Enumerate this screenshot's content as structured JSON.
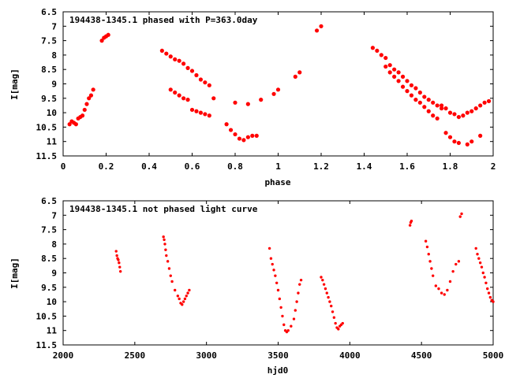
{
  "colors": {
    "points": "#ff0000",
    "axes": "#000000",
    "background": "#ffffff"
  },
  "chart_data": [
    {
      "type": "scatter",
      "title": "194438-1345.1 phased with P=363.0day",
      "xlabel": "phase",
      "ylabel": "I[mag]",
      "xlim": [
        0,
        2
      ],
      "ylim": [
        11.5,
        6.5
      ],
      "y_inverted": true,
      "grid": false,
      "xticks": [
        "0",
        "0.2",
        "0.4",
        "0.6",
        "0.8",
        "1",
        "1.2",
        "1.4",
        "1.6",
        "1.8",
        "2"
      ],
      "yticks": [
        "6.5",
        "7",
        "7.5",
        "8",
        "8.5",
        "9",
        "9.5",
        "10",
        "10.5",
        "11",
        "11.5"
      ],
      "marker": "filled-circle",
      "x": [
        0.03,
        0.04,
        0.05,
        0.06,
        0.07,
        0.08,
        0.09,
        0.1,
        0.11,
        0.12,
        0.13,
        0.14,
        0.18,
        0.19,
        0.2,
        0.21,
        0.46,
        0.48,
        0.5,
        0.52,
        0.54,
        0.56,
        0.58,
        0.6,
        0.62,
        0.64,
        0.66,
        0.68,
        0.5,
        0.52,
        0.54,
        0.56,
        0.58,
        0.6,
        0.62,
        0.64,
        0.66,
        0.68,
        0.7,
        0.76,
        0.78,
        0.8,
        0.82,
        0.84,
        0.86,
        0.88,
        0.9,
        0.8,
        0.86,
        0.92,
        0.98,
        1.0,
        1.08,
        1.1,
        1.18,
        1.2,
        1.44,
        1.46,
        1.48,
        1.5,
        1.52,
        1.54,
        1.56,
        1.58,
        1.6,
        1.62,
        1.64,
        1.66,
        1.68,
        1.7,
        1.72,
        1.74,
        1.76,
        1.5,
        1.52,
        1.54,
        1.56,
        1.58,
        1.6,
        1.62,
        1.64,
        1.66,
        1.68,
        1.7,
        1.72,
        1.74,
        1.76,
        1.78,
        1.8,
        1.82,
        1.84,
        1.86,
        1.88,
        1.9,
        1.92,
        1.94,
        1.96,
        1.98,
        1.78,
        1.8,
        1.82,
        1.84,
        1.88,
        1.9,
        1.94
      ],
      "y": [
        10.4,
        10.3,
        10.35,
        10.4,
        10.2,
        10.15,
        10.1,
        9.9,
        9.7,
        9.5,
        9.4,
        9.2,
        7.5,
        7.4,
        7.35,
        7.3,
        7.85,
        7.95,
        8.05,
        8.15,
        8.2,
        8.3,
        8.45,
        8.55,
        8.7,
        8.85,
        8.95,
        9.05,
        9.2,
        9.3,
        9.4,
        9.5,
        9.55,
        9.9,
        9.95,
        10.0,
        10.05,
        10.1,
        9.5,
        10.4,
        10.6,
        10.75,
        10.9,
        10.95,
        10.85,
        10.8,
        10.8,
        9.65,
        9.7,
        9.55,
        9.35,
        9.2,
        8.75,
        8.6,
        7.15,
        7.0,
        7.75,
        7.85,
        8.0,
        8.1,
        8.35,
        8.5,
        8.6,
        8.75,
        8.9,
        9.05,
        9.15,
        9.3,
        9.45,
        9.55,
        9.65,
        9.75,
        9.85,
        8.4,
        8.6,
        8.75,
        8.9,
        9.1,
        9.25,
        9.4,
        9.55,
        9.65,
        9.8,
        9.95,
        10.1,
        10.2,
        9.75,
        9.85,
        10.0,
        10.05,
        10.15,
        10.1,
        10.0,
        9.95,
        9.85,
        9.75,
        9.65,
        9.6,
        10.7,
        10.85,
        11.0,
        11.05,
        11.1,
        11.0,
        10.8
      ]
    },
    {
      "type": "scatter",
      "title": "194438-1345.1 not phased light curve",
      "xlabel": "hjd0",
      "ylabel": "I[mag]",
      "xlim": [
        2000,
        5000
      ],
      "ylim": [
        11.5,
        6.5
      ],
      "y_inverted": true,
      "grid": false,
      "xticks": [
        "2000",
        "2500",
        "3000",
        "3500",
        "4000",
        "4500",
        "5000"
      ],
      "yticks": [
        "6.5",
        "7",
        "7.5",
        "8",
        "8.5",
        "9",
        "9.5",
        "10",
        "10.5",
        "11",
        "11.5"
      ],
      "marker": "small-filled-circle",
      "x": [
        2370,
        2375,
        2380,
        2385,
        2390,
        2395,
        2400,
        2700,
        2705,
        2710,
        2715,
        2720,
        2730,
        2740,
        2750,
        2760,
        2780,
        2800,
        2810,
        2820,
        2830,
        2840,
        2850,
        2860,
        2870,
        2880,
        3440,
        3450,
        3460,
        3470,
        3480,
        3490,
        3500,
        3510,
        3520,
        3530,
        3540,
        3550,
        3560,
        3570,
        3590,
        3610,
        3620,
        3630,
        3640,
        3650,
        3660,
        3800,
        3810,
        3820,
        3830,
        3840,
        3850,
        3860,
        3870,
        3880,
        3890,
        3900,
        3910,
        3920,
        3930,
        3940,
        3950,
        4420,
        4425,
        4430,
        4530,
        4540,
        4550,
        4560,
        4570,
        4580,
        4600,
        4620,
        4640,
        4660,
        4680,
        4700,
        4720,
        4740,
        4760,
        4770,
        4780,
        4880,
        4890,
        4900,
        4910,
        4920,
        4930,
        4940,
        4950,
        4960,
        4970,
        4980,
        4990,
        5000
      ],
      "y": [
        8.25,
        8.4,
        8.5,
        8.55,
        8.65,
        8.8,
        8.95,
        7.75,
        7.85,
        8.0,
        8.2,
        8.4,
        8.6,
        8.85,
        9.1,
        9.3,
        9.6,
        9.8,
        9.9,
        10.05,
        10.1,
        10.0,
        9.9,
        9.8,
        9.7,
        9.6,
        8.15,
        8.5,
        8.7,
        8.9,
        9.1,
        9.35,
        9.6,
        9.9,
        10.2,
        10.5,
        10.8,
        11.0,
        11.05,
        11.0,
        10.85,
        10.6,
        10.3,
        10.0,
        9.7,
        9.4,
        9.25,
        9.15,
        9.25,
        9.4,
        9.55,
        9.7,
        9.85,
        10.0,
        10.15,
        10.35,
        10.55,
        10.75,
        10.9,
        10.95,
        10.85,
        10.8,
        10.75,
        7.35,
        7.25,
        7.2,
        7.9,
        8.1,
        8.35,
        8.6,
        8.85,
        9.1,
        9.45,
        9.55,
        9.7,
        9.75,
        9.6,
        9.3,
        8.95,
        8.7,
        8.6,
        7.05,
        6.95,
        8.15,
        8.35,
        8.5,
        8.65,
        8.8,
        9.0,
        9.15,
        9.35,
        9.55,
        9.7,
        9.85,
        9.95,
        10.0
      ]
    }
  ]
}
